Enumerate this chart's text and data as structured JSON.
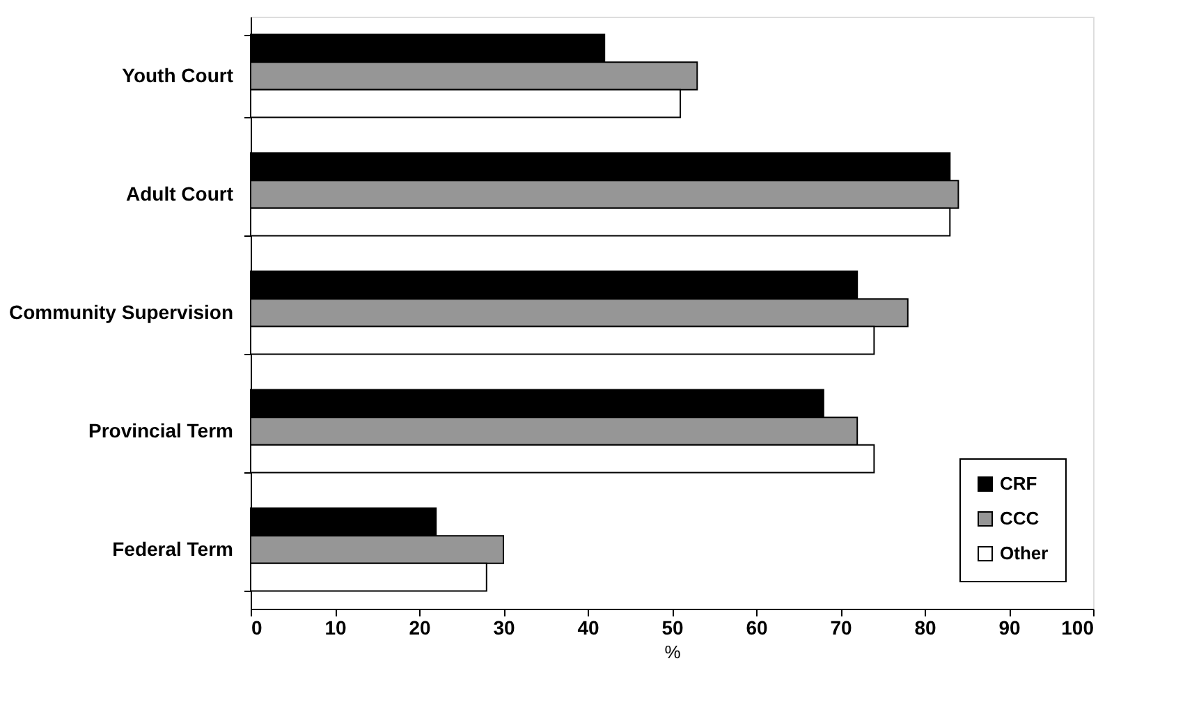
{
  "chart_data": {
    "type": "bar",
    "orientation": "horizontal",
    "xlabel": "%",
    "categories": [
      "Youth Court",
      "Adult Court",
      "Community Supervision",
      "Provincial Term",
      "Federal Term"
    ],
    "series": [
      {
        "name": "CRF",
        "color": "#000000",
        "values": [
          42,
          83,
          72,
          68,
          22
        ]
      },
      {
        "name": "CCC",
        "color": "#969696",
        "values": [
          53,
          84,
          78,
          72,
          30
        ]
      },
      {
        "name": "Other",
        "color": "#ffffff",
        "values": [
          51,
          83,
          74,
          74,
          28
        ]
      }
    ],
    "xlim": [
      0,
      100
    ],
    "xticks": [
      0,
      10,
      20,
      30,
      40,
      50,
      60,
      70,
      80,
      90,
      100
    ],
    "grid": false,
    "legend": "bottom right"
  }
}
